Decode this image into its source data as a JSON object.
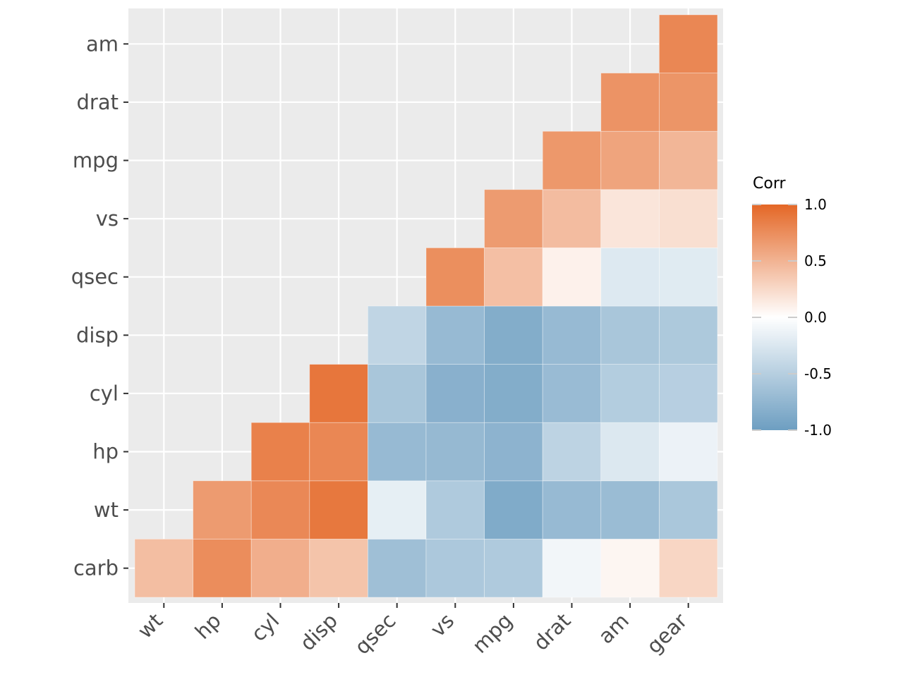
{
  "chart_data": {
    "type": "heatmap",
    "title": "",
    "xlabel": "",
    "ylabel": "",
    "x_categories": [
      "wt",
      "hp",
      "cyl",
      "disp",
      "qsec",
      "vs",
      "mpg",
      "drat",
      "am",
      "gear"
    ],
    "y_categories": [
      "carb",
      "wt",
      "hp",
      "cyl",
      "disp",
      "qsec",
      "vs",
      "mpg",
      "drat",
      "am"
    ],
    "cells": [
      {
        "x": "wt",
        "y": "carb",
        "value": 0.43
      },
      {
        "x": "hp",
        "y": "carb",
        "value": 0.75
      },
      {
        "x": "cyl",
        "y": "carb",
        "value": 0.53
      },
      {
        "x": "disp",
        "y": "carb",
        "value": 0.39
      },
      {
        "x": "qsec",
        "y": "carb",
        "value": -0.66
      },
      {
        "x": "vs",
        "y": "carb",
        "value": -0.57
      },
      {
        "x": "mpg",
        "y": "carb",
        "value": -0.55
      },
      {
        "x": "drat",
        "y": "carb",
        "value": -0.09
      },
      {
        "x": "am",
        "y": "carb",
        "value": 0.06
      },
      {
        "x": "gear",
        "y": "carb",
        "value": 0.27
      },
      {
        "x": "hp",
        "y": "wt",
        "value": 0.66
      },
      {
        "x": "cyl",
        "y": "wt",
        "value": 0.78
      },
      {
        "x": "disp",
        "y": "wt",
        "value": 0.89
      },
      {
        "x": "qsec",
        "y": "wt",
        "value": -0.17
      },
      {
        "x": "vs",
        "y": "wt",
        "value": -0.55
      },
      {
        "x": "mpg",
        "y": "wt",
        "value": -0.87
      },
      {
        "x": "drat",
        "y": "wt",
        "value": -0.71
      },
      {
        "x": "am",
        "y": "wt",
        "value": -0.69
      },
      {
        "x": "gear",
        "y": "wt",
        "value": -0.58
      },
      {
        "x": "cyl",
        "y": "hp",
        "value": 0.83
      },
      {
        "x": "disp",
        "y": "hp",
        "value": 0.79
      },
      {
        "x": "qsec",
        "y": "hp",
        "value": -0.71
      },
      {
        "x": "vs",
        "y": "hp",
        "value": -0.72
      },
      {
        "x": "mpg",
        "y": "hp",
        "value": -0.78
      },
      {
        "x": "drat",
        "y": "hp",
        "value": -0.45
      },
      {
        "x": "am",
        "y": "hp",
        "value": -0.24
      },
      {
        "x": "gear",
        "y": "hp",
        "value": -0.13
      },
      {
        "x": "disp",
        "y": "cyl",
        "value": 0.9
      },
      {
        "x": "qsec",
        "y": "cyl",
        "value": -0.59
      },
      {
        "x": "vs",
        "y": "cyl",
        "value": -0.81
      },
      {
        "x": "mpg",
        "y": "cyl",
        "value": -0.85
      },
      {
        "x": "drat",
        "y": "cyl",
        "value": -0.7
      },
      {
        "x": "am",
        "y": "cyl",
        "value": -0.52
      },
      {
        "x": "gear",
        "y": "cyl",
        "value": -0.49
      },
      {
        "x": "qsec",
        "y": "disp",
        "value": -0.43
      },
      {
        "x": "vs",
        "y": "disp",
        "value": -0.71
      },
      {
        "x": "mpg",
        "y": "disp",
        "value": -0.85
      },
      {
        "x": "drat",
        "y": "disp",
        "value": -0.71
      },
      {
        "x": "am",
        "y": "disp",
        "value": -0.59
      },
      {
        "x": "gear",
        "y": "disp",
        "value": -0.56
      },
      {
        "x": "vs",
        "y": "qsec",
        "value": 0.74
      },
      {
        "x": "mpg",
        "y": "qsec",
        "value": 0.42
      },
      {
        "x": "drat",
        "y": "qsec",
        "value": 0.09
      },
      {
        "x": "am",
        "y": "qsec",
        "value": -0.23
      },
      {
        "x": "gear",
        "y": "qsec",
        "value": -0.21
      },
      {
        "x": "mpg",
        "y": "vs",
        "value": 0.66
      },
      {
        "x": "drat",
        "y": "vs",
        "value": 0.44
      },
      {
        "x": "am",
        "y": "vs",
        "value": 0.17
      },
      {
        "x": "gear",
        "y": "vs",
        "value": 0.21
      },
      {
        "x": "drat",
        "y": "mpg",
        "value": 0.68
      },
      {
        "x": "am",
        "y": "mpg",
        "value": 0.6
      },
      {
        "x": "gear",
        "y": "mpg",
        "value": 0.48
      },
      {
        "x": "am",
        "y": "drat",
        "value": 0.71
      },
      {
        "x": "gear",
        "y": "drat",
        "value": 0.7
      },
      {
        "x": "gear",
        "y": "am",
        "value": 0.79
      }
    ],
    "legend": {
      "title": "Corr",
      "position": "right",
      "ticks": [
        1.0,
        0.5,
        0.0,
        -0.5,
        -1.0
      ],
      "tick_labels": [
        "1.0",
        "0.5",
        "0.0",
        "-0.5",
        "-1.0"
      ]
    },
    "colors": {
      "high": "#E46726",
      "mid": "#FFFFFF",
      "low": "#6D9EC1",
      "panel_background": "#EBEBEB",
      "grid": "#FFFFFF"
    },
    "limits": [
      -1,
      1
    ],
    "grid": true
  }
}
